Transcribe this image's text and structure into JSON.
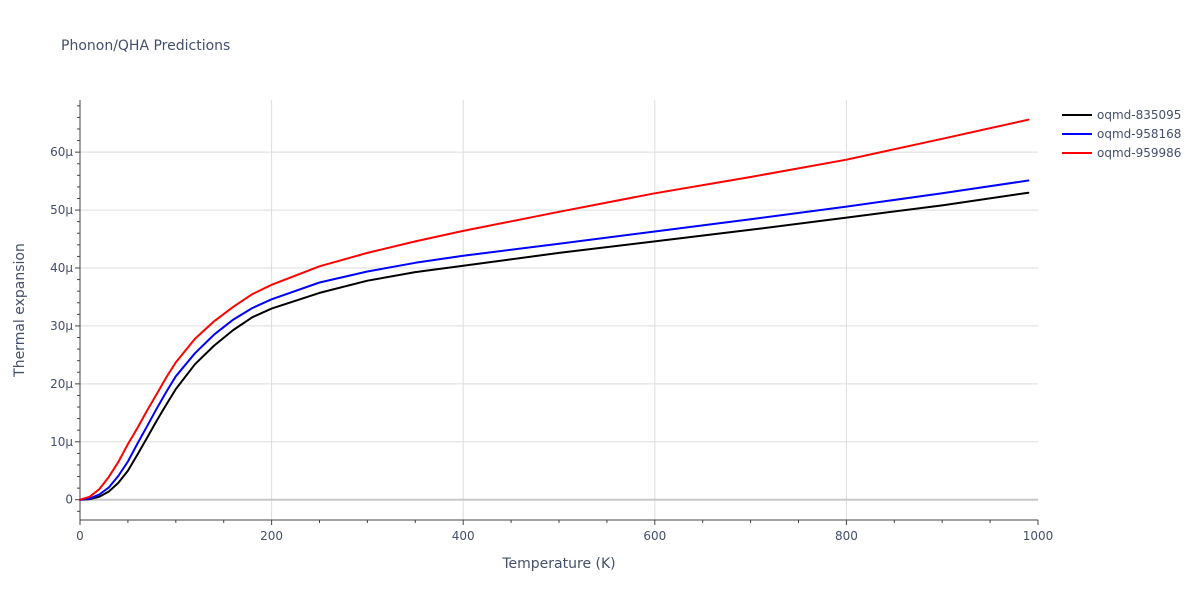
{
  "chart_data": {
    "type": "line",
    "title": "Phonon/QHA Predictions",
    "xlabel": "Temperature (K)",
    "ylabel": "Thermal expansion",
    "xlim": [
      0,
      1000
    ],
    "ylim": [
      -3.5,
      69
    ],
    "x_ticks": [
      0,
      200,
      400,
      600,
      800,
      1000
    ],
    "x_tick_labels": [
      "0",
      "200",
      "400",
      "600",
      "800",
      "1000"
    ],
    "y_ticks": [
      0,
      10,
      20,
      30,
      40,
      50,
      60
    ],
    "y_tick_labels": [
      "0",
      "10μ",
      "20μ",
      "30μ",
      "40μ",
      "50μ",
      "60μ"
    ],
    "grid": true,
    "legend_position": "top-right",
    "series": [
      {
        "name": "oqmd-835095",
        "color": "#000000",
        "x": [
          0,
          10,
          20,
          30,
          40,
          50,
          60,
          70,
          80,
          90,
          100,
          120,
          140,
          160,
          180,
          200,
          250,
          300,
          350,
          400,
          500,
          600,
          700,
          800,
          900,
          990
        ],
        "y": [
          0,
          0.1,
          0.5,
          1.4,
          2.9,
          5.0,
          7.8,
          10.7,
          13.6,
          16.4,
          19.1,
          23.4,
          26.6,
          29.3,
          31.5,
          33.0,
          35.7,
          37.8,
          39.3,
          40.4,
          42.6,
          44.6,
          46.6,
          48.7,
          50.8,
          53.0
        ]
      },
      {
        "name": "oqmd-958168",
        "color": "#0000ff",
        "x": [
          0,
          10,
          20,
          30,
          40,
          50,
          60,
          70,
          80,
          90,
          100,
          120,
          140,
          160,
          180,
          200,
          250,
          300,
          350,
          400,
          500,
          600,
          700,
          800,
          900,
          990
        ],
        "y": [
          0,
          0.2,
          0.9,
          2.1,
          4.1,
          6.6,
          9.7,
          12.7,
          15.7,
          18.6,
          21.3,
          25.3,
          28.5,
          31.1,
          33.1,
          34.6,
          37.5,
          39.4,
          40.9,
          42.1,
          44.2,
          46.3,
          48.4,
          50.6,
          52.9,
          55.1
        ]
      },
      {
        "name": "oqmd-959986",
        "color": "#ff0000",
        "x": [
          0,
          10,
          20,
          30,
          40,
          50,
          60,
          70,
          80,
          90,
          100,
          120,
          140,
          160,
          180,
          200,
          250,
          300,
          350,
          400,
          500,
          600,
          700,
          800,
          900,
          990
        ],
        "y": [
          0,
          0.5,
          1.8,
          3.9,
          6.5,
          9.6,
          12.4,
          15.4,
          18.2,
          21.1,
          23.7,
          27.8,
          30.8,
          33.3,
          35.5,
          37.1,
          40.3,
          42.6,
          44.6,
          46.4,
          49.7,
          52.9,
          55.7,
          58.7,
          62.3,
          65.6
        ]
      }
    ]
  }
}
